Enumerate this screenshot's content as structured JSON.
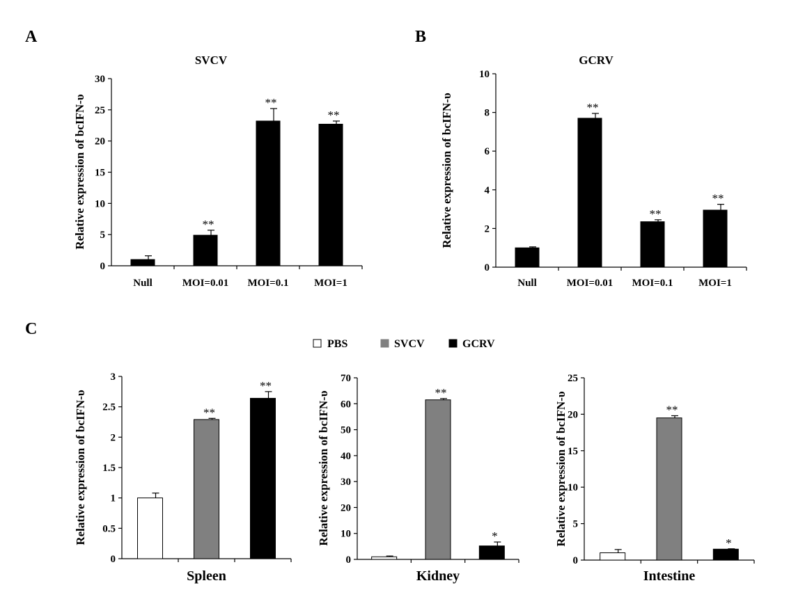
{
  "panel_labels": [
    "A",
    "B",
    "C"
  ],
  "legend": {
    "entries": [
      {
        "label": "PBS",
        "color": "#ffffff"
      },
      {
        "label": "SVCV",
        "color": "#808080"
      },
      {
        "label": "GCRV",
        "color": "#000000"
      }
    ]
  },
  "chart_data": [
    {
      "id": "A",
      "type": "bar",
      "title": "SVCV",
      "xlabel": "",
      "ylabel": "Relative expression of  bcIFN-υ",
      "categories": [
        "Null",
        "MOI=0.01",
        "MOI=0.1",
        "MOI=1"
      ],
      "values": [
        1.0,
        4.9,
        23.2,
        22.7
      ],
      "errors": [
        0.6,
        0.8,
        2.0,
        0.5
      ],
      "significance": [
        "",
        "**",
        "**",
        "**"
      ],
      "colors": [
        "#000000",
        "#000000",
        "#000000",
        "#000000"
      ],
      "ylim": [
        0,
        30
      ],
      "yticks": [
        "0",
        "5",
        "10",
        "15",
        "20",
        "25",
        "30"
      ],
      "grid": false
    },
    {
      "id": "B",
      "type": "bar",
      "title": "GCRV",
      "xlabel": "",
      "ylabel": "Relative expression of  bcIFN-υ",
      "categories": [
        "Null",
        "MOI=0.01",
        "MOI=0.1",
        "MOI=1"
      ],
      "values": [
        1.0,
        7.7,
        2.35,
        2.95
      ],
      "errors": [
        0.05,
        0.25,
        0.1,
        0.3
      ],
      "significance": [
        "",
        "**",
        "**",
        "**"
      ],
      "colors": [
        "#000000",
        "#000000",
        "#000000",
        "#000000"
      ],
      "ylim": [
        0,
        10
      ],
      "yticks": [
        "0",
        "2",
        "4",
        "6",
        "8",
        "10"
      ],
      "grid": false
    },
    {
      "id": "C1",
      "type": "bar",
      "title": "",
      "xlabel": "Spleen",
      "ylabel": "Relative expression of  bcIFN-υ",
      "categories": [
        "PBS",
        "SVCV",
        "GCRV"
      ],
      "values": [
        1.0,
        2.29,
        2.64
      ],
      "errors": [
        0.08,
        0.02,
        0.11
      ],
      "significance": [
        "",
        "**",
        "**"
      ],
      "colors": [
        "#ffffff",
        "#808080",
        "#000000"
      ],
      "ylim": [
        0,
        3
      ],
      "yticks": [
        "0",
        "0.5",
        "1",
        "1.5",
        "2",
        "2.5",
        "3"
      ],
      "grid": false
    },
    {
      "id": "C2",
      "type": "bar",
      "title": "",
      "xlabel": "Kidney",
      "ylabel": "Relative expression of  bcIFN-υ",
      "categories": [
        "PBS",
        "SVCV",
        "GCRV"
      ],
      "values": [
        1.0,
        61.5,
        5.2
      ],
      "errors": [
        0.3,
        0.5,
        1.5
      ],
      "significance": [
        "",
        "**",
        "*"
      ],
      "colors": [
        "#ffffff",
        "#808080",
        "#000000"
      ],
      "ylim": [
        0,
        70
      ],
      "yticks": [
        "0",
        "10",
        "20",
        "30",
        "40",
        "50",
        "60",
        "70"
      ],
      "grid": false
    },
    {
      "id": "C3",
      "type": "bar",
      "title": "",
      "xlabel": "Intestine",
      "ylabel": "Relative expression of  bcIFN-υ",
      "categories": [
        "PBS",
        "SVCV",
        "GCRV"
      ],
      "values": [
        1.0,
        19.5,
        1.5
      ],
      "errors": [
        0.45,
        0.3,
        0.05
      ],
      "significance": [
        "",
        "**",
        "*"
      ],
      "colors": [
        "#ffffff",
        "#808080",
        "#000000"
      ],
      "ylim": [
        0,
        25
      ],
      "yticks": [
        "0",
        "5",
        "10",
        "15",
        "20",
        "25"
      ],
      "grid": false
    }
  ]
}
